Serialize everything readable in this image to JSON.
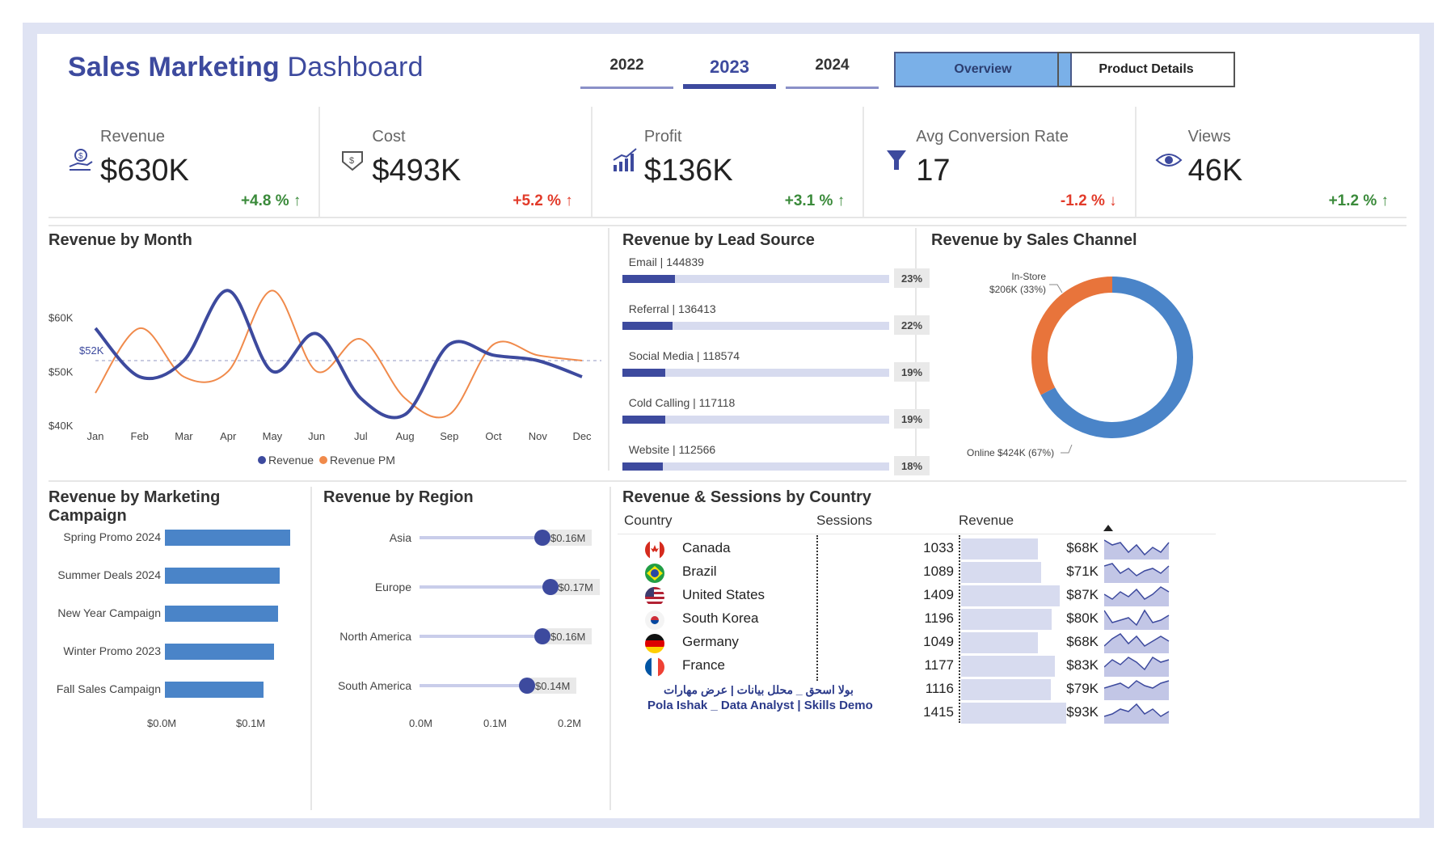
{
  "header": {
    "title_bold": "Sales Marketing",
    "title_rest": "Dashboard",
    "years": [
      "2022",
      "2023",
      "2024"
    ],
    "active_year": "2023",
    "buttons": {
      "overview": "Overview",
      "product_details": "Product Details"
    }
  },
  "kpis": [
    {
      "label": "Revenue",
      "value": "$630K",
      "delta": "+4.8 % ↑",
      "trend": "up",
      "icon": "money-hand-icon"
    },
    {
      "label": "Cost",
      "value": "$493K",
      "delta": "+5.2 % ↑",
      "trend": "up-bad",
      "icon": "cost-hand-icon"
    },
    {
      "label": "Profit",
      "value": "$136K",
      "delta": "+3.1 % ↑",
      "trend": "up",
      "icon": "profit-chart-icon"
    },
    {
      "label": "Avg Conversion Rate",
      "value": "17",
      "delta": "-1.2 % ↓",
      "trend": "down",
      "icon": "funnel-icon"
    },
    {
      "label": "Views",
      "value": "46K",
      "delta": "+1.2 % ↑",
      "trend": "up",
      "icon": "eye-icon"
    }
  ],
  "colors": {
    "primary": "#3d4a9e",
    "secondary": "#f08a4b",
    "donut_online": "#4a84c8",
    "donut_instore": "#e8743b",
    "positive": "#3a8a3a",
    "negative": "#e23b2a"
  },
  "panels": {
    "revenue_by_month": "Revenue by Month",
    "revenue_by_lead_source": "Revenue by Lead Source",
    "revenue_by_sales_channel": "Revenue by Sales Channel",
    "revenue_by_campaign": "Revenue by Marketing Campaign",
    "revenue_by_region": "Revenue by Region",
    "revenue_sessions_country": "Revenue & Sessions by Country"
  },
  "chart_data": [
    {
      "type": "line",
      "title": "Revenue by Month",
      "categories": [
        "Jan",
        "Feb",
        "Mar",
        "Apr",
        "May",
        "Jun",
        "Jul",
        "Aug",
        "Sep",
        "Oct",
        "Nov",
        "Dec"
      ],
      "series": [
        {
          "name": "Revenue",
          "values": [
            58,
            49,
            52,
            65,
            50,
            57,
            45,
            42,
            55,
            53,
            52,
            49
          ]
        },
        {
          "name": "Revenue PM",
          "values": [
            46,
            58,
            49,
            50,
            65,
            50,
            56,
            45,
            42,
            55,
            53,
            52
          ]
        }
      ],
      "yticks": [
        "$40K",
        "$50K",
        "$60K"
      ],
      "ylim": [
        40,
        70
      ],
      "reference_line": {
        "label": "$52K",
        "value": 52
      },
      "legend": "bottom"
    },
    {
      "type": "bar",
      "title": "Revenue by Lead Source",
      "categories": [
        "Email | 144839",
        "Referral | 136413",
        "Social Media | 118574",
        "Cold Calling | 117118",
        "Website | 112566"
      ],
      "values": [
        23,
        22,
        19,
        19,
        18
      ],
      "labels": [
        "23%",
        "22%",
        "19%",
        "19%",
        "18%"
      ]
    },
    {
      "type": "pie",
      "title": "Revenue by Sales Channel",
      "categories": [
        "Online",
        "In-Store"
      ],
      "values": [
        424,
        206
      ],
      "labels": [
        "Online $424K (67%)",
        "In-Store $206K (33%)"
      ],
      "instore_line1": "In-Store",
      "instore_line2": "$206K (33%)"
    },
    {
      "type": "bar",
      "title": "Revenue by Marketing Campaign",
      "categories": [
        "Spring Promo 2024",
        "Summer Deals 2024",
        "New Year Campaign",
        "Winter Promo 2023",
        "Fall Sales Campaign"
      ],
      "values": [
        0.14,
        0.128,
        0.126,
        0.122,
        0.11
      ],
      "xticks": [
        "$0.0M",
        "$0.1M"
      ]
    },
    {
      "type": "scatter",
      "title": "Revenue by Region",
      "categories": [
        "Asia",
        "Europe",
        "North America",
        "South America"
      ],
      "values": [
        0.16,
        0.17,
        0.16,
        0.14
      ],
      "labels": [
        "$0.16M",
        "$0.17M",
        "$0.16M",
        "$0.14M"
      ],
      "xticks": [
        "0.0M",
        "0.1M",
        "0.2M"
      ]
    },
    {
      "type": "table",
      "title": "Revenue & Sessions by Country",
      "columns": [
        "Country",
        "Sessions",
        "Revenue"
      ],
      "rows": [
        {
          "country": "Canada",
          "sessions": "1033",
          "revenue": "$68K",
          "rev": 68,
          "flag": "flag-canada-icon",
          "spark": [
            8,
            6,
            7,
            3,
            6,
            2,
            5,
            3,
            7
          ]
        },
        {
          "country": "Brazil",
          "sessions": "1089",
          "revenue": "$71K",
          "rev": 71,
          "flag": "flag-brazil-icon",
          "spark": [
            7,
            8,
            4,
            6,
            3,
            5,
            6,
            4,
            7
          ]
        },
        {
          "country": "United States",
          "sessions": "1409",
          "revenue": "$87K",
          "rev": 87,
          "flag": "flag-usa-icon",
          "spark": [
            5,
            3,
            6,
            4,
            7,
            3,
            5,
            8,
            6
          ]
        },
        {
          "country": "South Korea",
          "sessions": "1196",
          "revenue": "$80K",
          "rev": 80,
          "flag": "flag-korea-icon",
          "spark": [
            8,
            3,
            4,
            5,
            2,
            8,
            3,
            4,
            6
          ]
        },
        {
          "country": "Germany",
          "sessions": "1049",
          "revenue": "$68K",
          "rev": 68,
          "flag": "flag-germany-icon",
          "spark": [
            3,
            6,
            8,
            4,
            7,
            3,
            5,
            7,
            5
          ]
        },
        {
          "country": "France",
          "sessions": "1177",
          "revenue": "$83K",
          "rev": 83,
          "flag": "flag-france-icon",
          "spark": [
            4,
            7,
            5,
            8,
            6,
            3,
            8,
            6,
            7
          ]
        },
        {
          "country": "",
          "sessions": "1116",
          "revenue": "$79K",
          "rev": 79,
          "flag": "",
          "spark": [
            5,
            6,
            7,
            5,
            8,
            6,
            5,
            7,
            8
          ]
        },
        {
          "country": "",
          "sessions": "1415",
          "revenue": "$93K",
          "rev": 93,
          "flag": "",
          "spark": [
            3,
            4,
            6,
            5,
            8,
            4,
            6,
            3,
            5
          ]
        }
      ]
    }
  ],
  "watermark": {
    "arabic": "بولا اسحق _ محلل بيانات | عرض مهارات",
    "english": "Pola Ishak _ Data Analyst | Skills Demo"
  }
}
